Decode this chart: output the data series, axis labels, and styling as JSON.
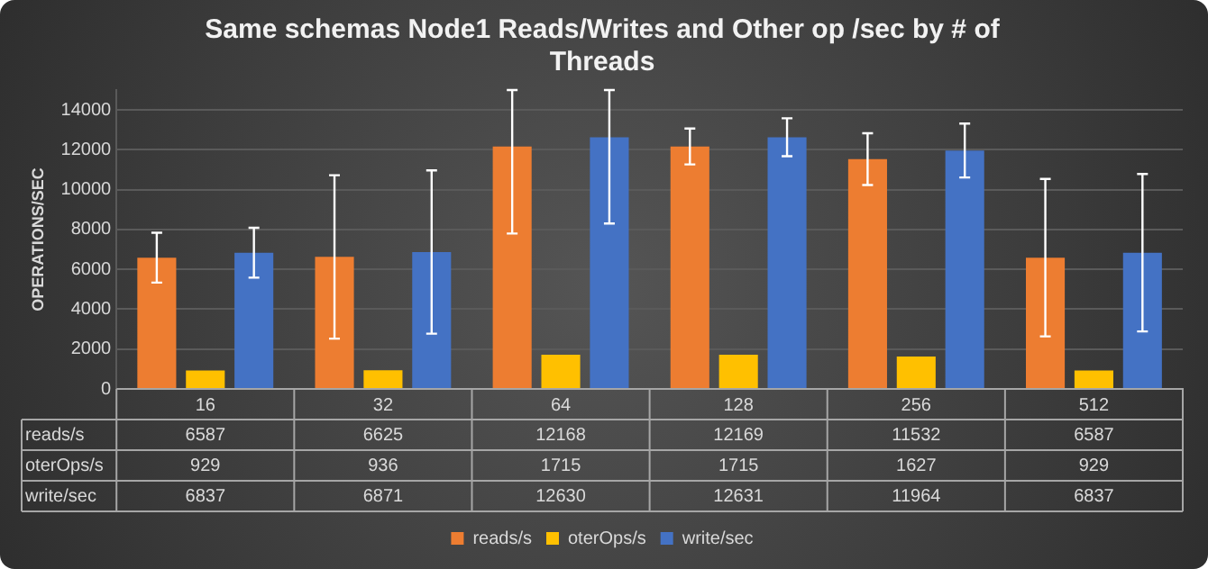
{
  "chart_data": {
    "type": "bar",
    "title": "Same schemas Node1 Reads/Writes and Other op /sec by # of Threads",
    "ylabel": "OPERATIONS/SEC",
    "categories": [
      "16",
      "32",
      "64",
      "128",
      "256",
      "512"
    ],
    "series": [
      {
        "name": "reads/s",
        "color": "#ed7d31",
        "values": [
          6587,
          6625,
          12168,
          12169,
          11532,
          6587
        ],
        "errors": [
          1250,
          4100,
          [
            7800,
            15000
          ],
          900,
          1300,
          3950
        ]
      },
      {
        "name": "oterOps/s",
        "color": "#ffc000",
        "values": [
          929,
          936,
          1715,
          1715,
          1627,
          929
        ]
      },
      {
        "name": "write/sec",
        "color": "#4472c4",
        "values": [
          6837,
          6871,
          12630,
          12631,
          11964,
          6837
        ],
        "errors": [
          1250,
          4100,
          [
            8300,
            15000
          ],
          950,
          1350,
          3950
        ]
      }
    ],
    "ylim": [
      0,
      15000
    ],
    "yticks": [
      0,
      2000,
      4000,
      6000,
      8000,
      10000,
      12000,
      14000
    ],
    "grid": "y",
    "legend": "bottom",
    "data_labels": true
  }
}
